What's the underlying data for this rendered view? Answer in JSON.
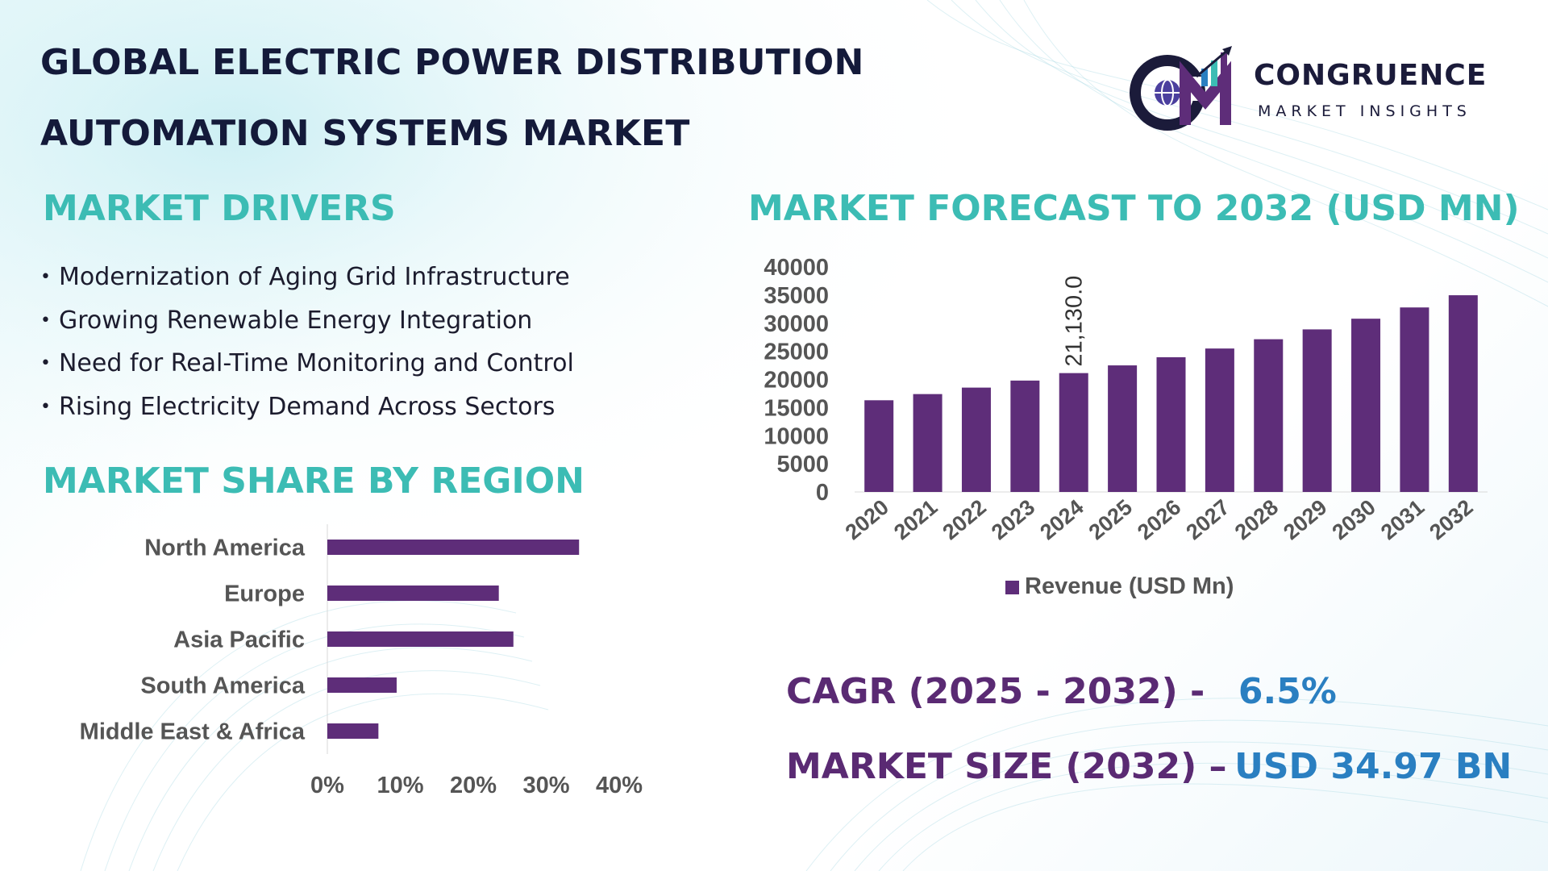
{
  "title": {
    "line1": "GLOBAL ELECTRIC POWER DISTRIBUTION",
    "line2": "AUTOMATION SYSTEMS MARKET"
  },
  "logo": {
    "name": "CONGRUENCE",
    "tagline": "MARKET INSIGHTS",
    "monogram": "CM",
    "icon": "globe-bar-chart-logo-icon"
  },
  "drivers": {
    "heading": "MARKET DRIVERS",
    "items": [
      "Modernization of Aging Grid Infrastructure",
      "Growing Renewable Energy Integration",
      "Need for Real-Time Monitoring and Control",
      "Rising Electricity Demand Across Sectors"
    ]
  },
  "region": {
    "heading": "MARKET SHARE BY REGION"
  },
  "forecast": {
    "heading": "MARKET FORECAST TO 2032 (USD MN)"
  },
  "stats": {
    "cagr_label": "CAGR (2025 - 2032) -",
    "cagr_value": "6.5%",
    "size_label": "MARKET SIZE (2032) –",
    "size_value": "USD 34.97 BN"
  },
  "colors": {
    "bar": "#5e2d79",
    "heading": "#3cbcb4",
    "title": "#141a3a",
    "stat_label": "#5a2a73",
    "stat_value": "#2a7fc1",
    "axis_text": "#555555"
  },
  "chart_data": [
    {
      "type": "bar",
      "orientation": "horizontal",
      "categories": [
        "North America",
        "Europe",
        "Asia Pacific",
        "South America",
        "Middle East & Africa"
      ],
      "values": [
        34.5,
        23.5,
        25.5,
        9.5,
        7
      ],
      "xlim": [
        0,
        40
      ],
      "x_ticks": [
        "0%",
        "10%",
        "20%",
        "30%",
        "40%"
      ],
      "grid": false
    },
    {
      "type": "bar",
      "orientation": "vertical",
      "categories": [
        "2020",
        "2021",
        "2022",
        "2023",
        "2024",
        "2025",
        "2026",
        "2027",
        "2028",
        "2029",
        "2030",
        "2031",
        "2032"
      ],
      "series": [
        {
          "name": "Revenue (USD Mn)",
          "values": [
            16300,
            17400,
            18550,
            19800,
            21130,
            22500,
            23950,
            25500,
            27150,
            28900,
            30800,
            32800,
            34970
          ]
        }
      ],
      "data_labels": [
        {
          "category": "2024",
          "text": "21,130.0"
        }
      ],
      "ylim": [
        0,
        40000
      ],
      "y_ticks": [
        "0",
        "5000",
        "10000",
        "15000",
        "20000",
        "25000",
        "30000",
        "35000",
        "40000"
      ],
      "legend": "bottom",
      "grid": false
    }
  ]
}
